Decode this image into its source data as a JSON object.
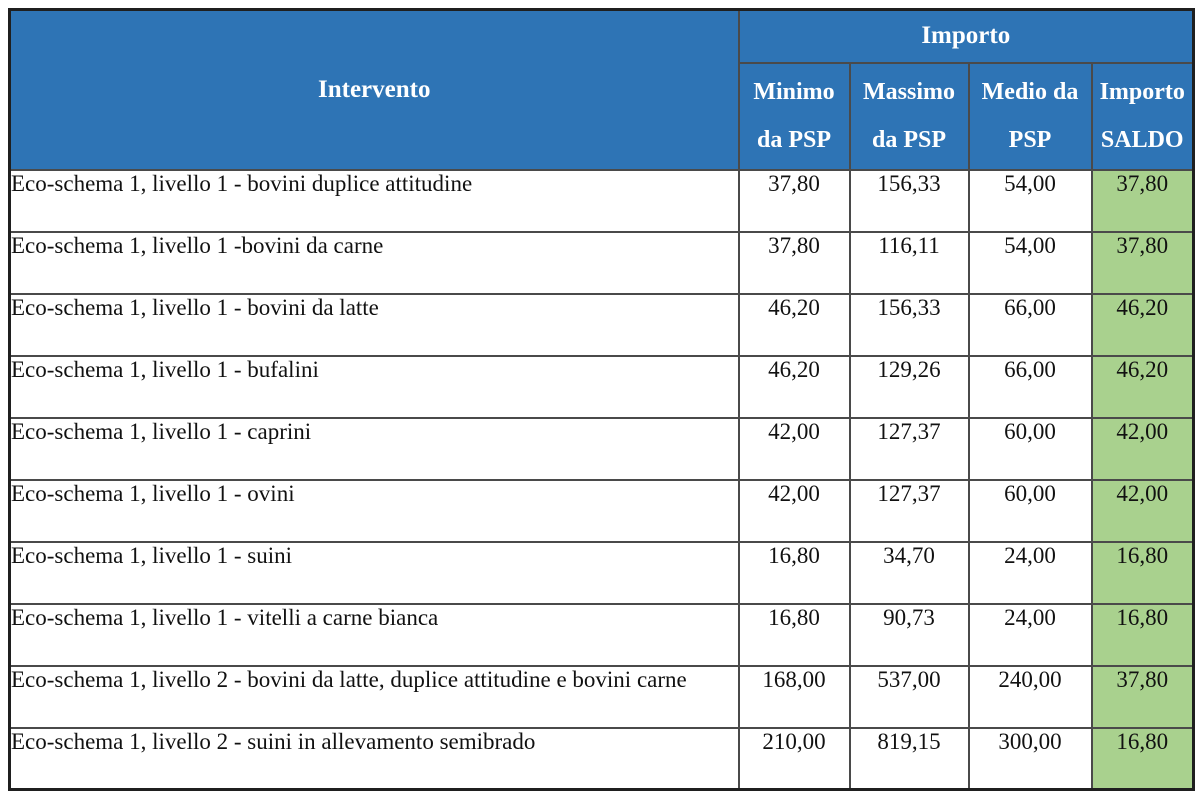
{
  "table": {
    "colors": {
      "header_bg": "#2E74B5",
      "header_text": "#FFFFFF",
      "saldo_bg": "#A9D18E",
      "outer_border": "#1F1F1F",
      "inner_border": "#4A4A4A"
    },
    "header": {
      "intervento": "Intervento",
      "importo_group": "Importo",
      "columns": [
        {
          "line1": "Minimo",
          "line2": "da PSP"
        },
        {
          "line1": "Massimo",
          "line2": "da PSP"
        },
        {
          "line1": "Medio da",
          "line2": "PSP"
        },
        {
          "line1": "Importo",
          "line2": "SALDO"
        }
      ]
    },
    "rows": [
      {
        "intervento": "Eco-schema 1, livello 1 - bovini duplice attitudine",
        "minimo": "37,80",
        "massimo": "156,33",
        "medio": "54,00",
        "saldo": "37,80"
      },
      {
        "intervento": "Eco-schema 1, livello 1 -bovini da carne",
        "minimo": "37,80",
        "massimo": "116,11",
        "medio": "54,00",
        "saldo": "37,80"
      },
      {
        "intervento": "Eco-schema 1, livello 1 - bovini da latte",
        "minimo": "46,20",
        "massimo": "156,33",
        "medio": "66,00",
        "saldo": "46,20"
      },
      {
        "intervento": "Eco-schema 1, livello 1 - bufalini",
        "minimo": "46,20",
        "massimo": "129,26",
        "medio": "66,00",
        "saldo": "46,20"
      },
      {
        "intervento": "Eco-schema 1, livello 1 - caprini",
        "minimo": "42,00",
        "massimo": "127,37",
        "medio": "60,00",
        "saldo": "42,00"
      },
      {
        "intervento": "Eco-schema 1, livello 1 - ovini",
        "minimo": "42,00",
        "massimo": "127,37",
        "medio": "60,00",
        "saldo": "42,00"
      },
      {
        "intervento": "Eco-schema 1, livello 1 - suini",
        "minimo": "16,80",
        "massimo": "34,70",
        "medio": "24,00",
        "saldo": "16,80"
      },
      {
        "intervento": "Eco-schema 1, livello 1 - vitelli a carne bianca",
        "minimo": "16,80",
        "massimo": "90,73",
        "medio": "24,00",
        "saldo": "16,80"
      },
      {
        "intervento": "Eco-schema 1, livello 2 - bovini da latte, duplice attitudine e bovini carne",
        "minimo": "168,00",
        "massimo": "537,00",
        "medio": "240,00",
        "saldo": "37,80"
      },
      {
        "intervento": "Eco-schema 1, livello 2 - suini in allevamento semibrado",
        "minimo": "210,00",
        "massimo": "819,15",
        "medio": "300,00",
        "saldo": "16,80"
      }
    ]
  }
}
